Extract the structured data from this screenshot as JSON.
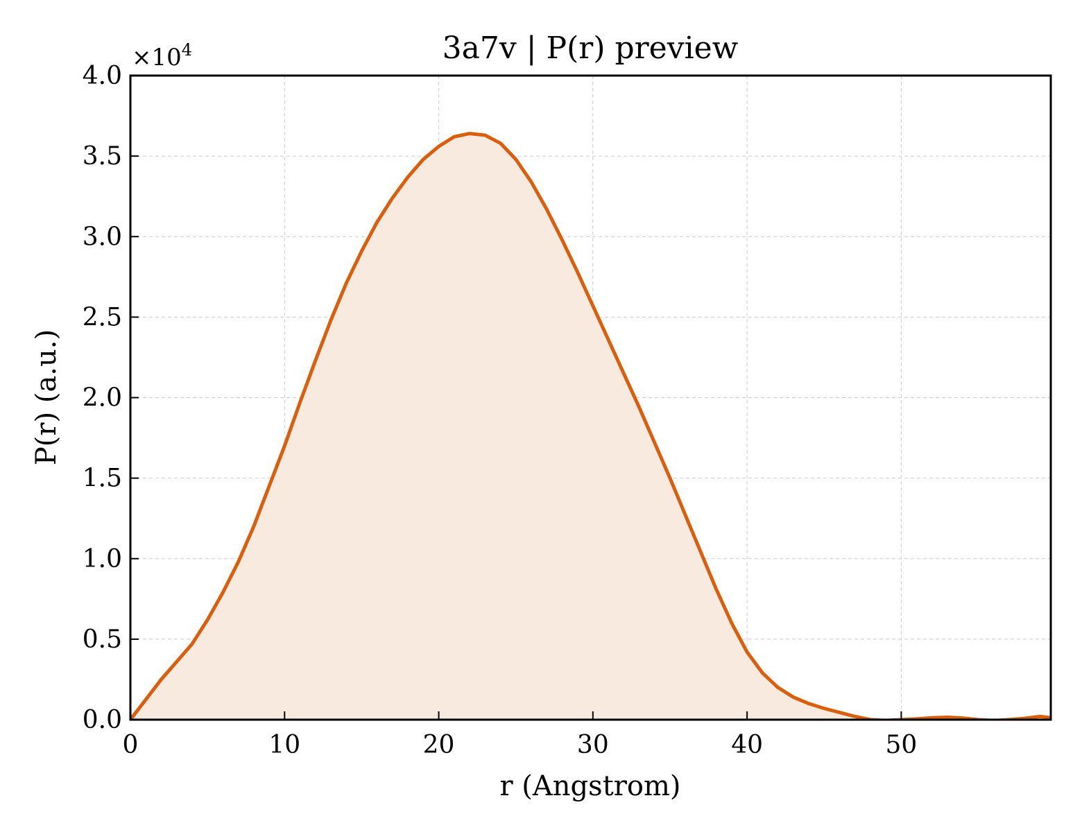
{
  "chart_data": {
    "type": "area",
    "title": "3a7v | P(r) preview",
    "xlabel": "r (Angstrom)",
    "ylabel": "P(r) (a.u.)",
    "y_scale_label": "×10",
    "y_scale_exponent": "4",
    "xlim": [
      0,
      59.7
    ],
    "ylim": [
      0,
      40000
    ],
    "xticks": [
      0,
      10,
      20,
      30,
      40,
      50
    ],
    "xtick_labels": [
      "0",
      "10",
      "20",
      "30",
      "40",
      "50"
    ],
    "yticks": [
      0,
      5000,
      10000,
      15000,
      20000,
      25000,
      30000,
      35000,
      40000
    ],
    "ytick_labels": [
      "0.0",
      "0.5",
      "1.0",
      "1.5",
      "2.0",
      "2.5",
      "3.0",
      "3.5",
      "4.0"
    ],
    "grid": true,
    "colors": {
      "line": "#d95f0e",
      "fill": "#f9eadf",
      "grid": "#cccccc"
    },
    "series": [
      {
        "x": [
          0,
          2,
          4,
          5,
          6,
          7,
          8,
          9,
          10,
          11,
          12,
          13,
          14,
          15,
          16,
          17,
          18,
          19,
          20,
          21,
          22,
          23,
          24,
          25,
          26,
          27,
          28,
          29,
          30,
          31,
          32,
          33,
          34,
          35,
          36,
          37,
          38,
          39,
          40,
          41,
          42,
          43,
          44,
          45,
          46,
          47,
          48,
          49,
          50,
          51,
          52,
          53,
          54,
          55,
          56,
          57,
          58,
          59,
          59.7
        ],
        "y": [
          0,
          2500,
          4700,
          6200,
          7900,
          9800,
          12000,
          14500,
          17000,
          19700,
          22300,
          24800,
          27100,
          29100,
          30900,
          32400,
          33700,
          34800,
          35600,
          36200,
          36400,
          36300,
          35800,
          34800,
          33400,
          31700,
          29800,
          27800,
          25700,
          23600,
          21500,
          19400,
          17200,
          15000,
          12700,
          10400,
          8100,
          6000,
          4200,
          2900,
          2000,
          1400,
          1000,
          700,
          450,
          200,
          0,
          -50,
          0,
          50,
          120,
          150,
          100,
          0,
          -60,
          0,
          80,
          200,
          120
        ]
      }
    ]
  }
}
